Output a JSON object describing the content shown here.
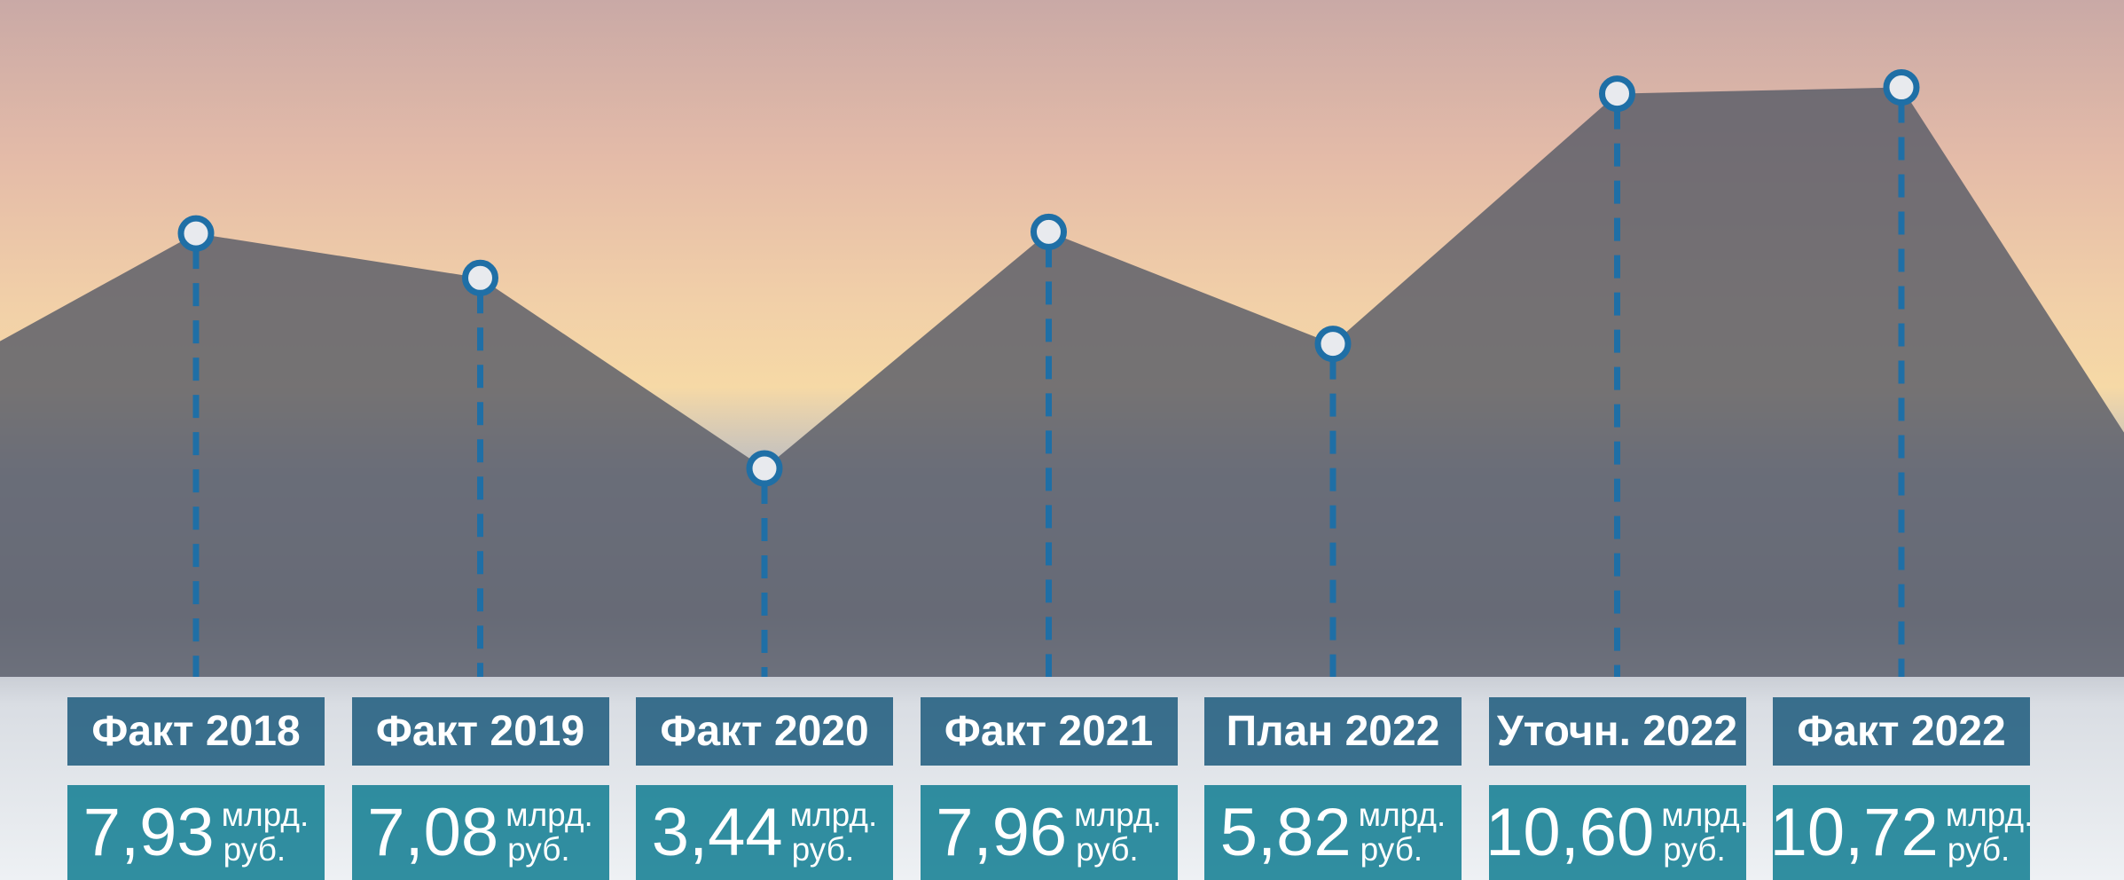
{
  "chart_data": {
    "type": "area",
    "categories": [
      "Факт 2018",
      "Факт 2019",
      "Факт 2020",
      "Факт 2021",
      "План 2022",
      "Уточн. 2022",
      "Факт 2022"
    ],
    "values": [
      7.93,
      7.08,
      3.44,
      7.96,
      5.82,
      10.6,
      10.72
    ],
    "value_labels": [
      "7,93",
      "7,08",
      "3,44",
      "7,96",
      "5,82",
      "10,60",
      "10,72"
    ],
    "unit_line1": "млрд.",
    "unit_line2": "руб.",
    "color": "#1f6fa6"
  }
}
